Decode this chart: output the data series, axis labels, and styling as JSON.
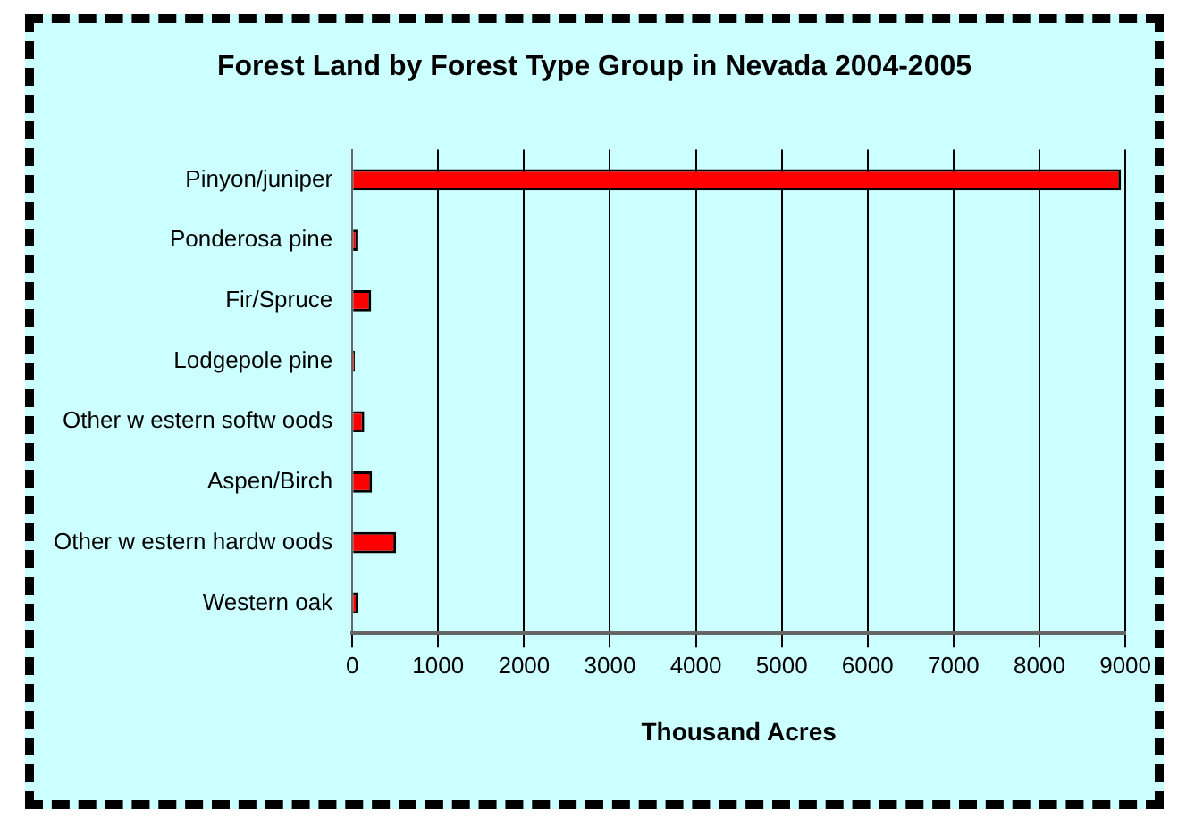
{
  "chart_data": {
    "type": "bar",
    "orientation": "horizontal",
    "title": "Forest Land by Forest Type Group in Nevada 2004-2005",
    "xlabel": "Thousand Acres",
    "categories": [
      "Pinyon/juniper",
      "Ponderosa pine",
      "Fir/Spruce",
      "Lodgepole pine",
      "Other w estern softw oods",
      "Aspen/Birch",
      "Other w estern hardw oods",
      "Western oak"
    ],
    "values": [
      8950,
      60,
      220,
      30,
      140,
      230,
      510,
      70
    ],
    "color": "#ff0000",
    "xlim": [
      0,
      9000
    ],
    "xticks": [
      0,
      1000,
      2000,
      3000,
      4000,
      5000,
      6000,
      7000,
      8000,
      9000
    ],
    "grid": "x",
    "legend": false
  }
}
